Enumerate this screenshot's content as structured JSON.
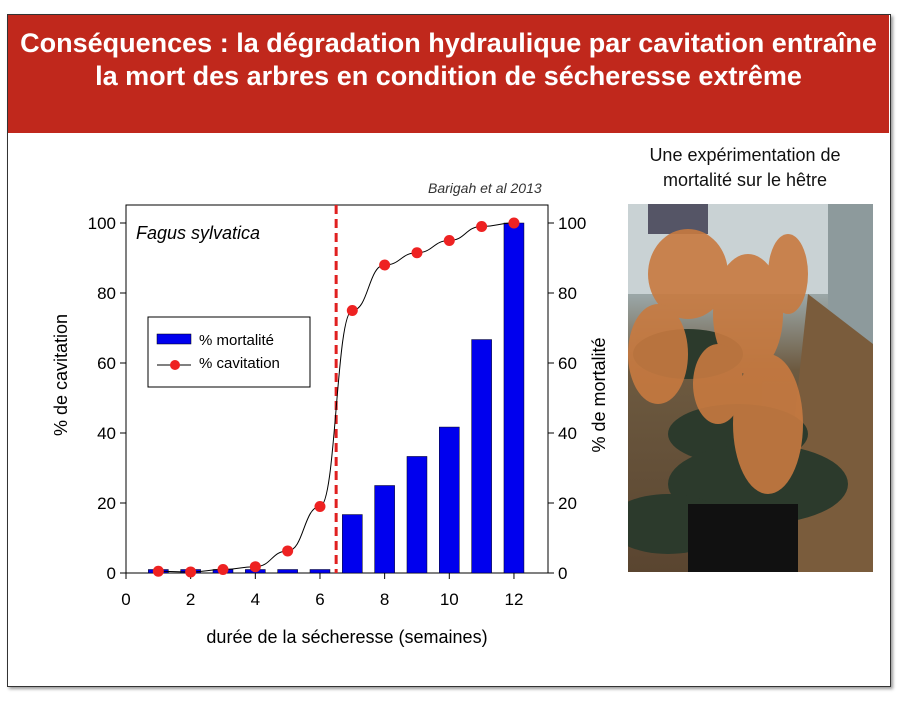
{
  "slide": {
    "title": "Conséquences : la dégradation hydraulique par cavitation entraîne la mort des arbres en condition de sécheresse extrême",
    "citation": "Barigah et al 2013",
    "photo_caption": "Une expérimentation de mortalité sur le hêtre"
  },
  "chart_data": {
    "type": "bar+line",
    "annotation": "Fagus sylvatica",
    "xlabel": "durée de la sécheresse (semaines)",
    "ylabel_left": "% de cavitation",
    "ylabel_right": "% de mortalité",
    "xlim": [
      0,
      13
    ],
    "ylim": [
      0,
      100
    ],
    "xticks": [
      0,
      2,
      4,
      6,
      8,
      10,
      12
    ],
    "yticks": [
      0,
      20,
      40,
      60,
      80,
      100
    ],
    "legend_position": "left-middle",
    "vertical_marker_x": 6.5,
    "x": [
      1,
      2,
      3,
      4,
      5,
      6,
      7,
      8,
      9,
      10,
      11,
      12
    ],
    "series": [
      {
        "name": "% mortalité",
        "type": "bar",
        "axis": "right",
        "color": "#0000ee",
        "values": [
          1,
          1,
          1,
          1,
          1,
          1,
          16.7,
          25,
          33.3,
          41.7,
          66.7,
          100
        ]
      },
      {
        "name": "% cavitation",
        "type": "line",
        "axis": "left",
        "color": "#ee0000",
        "values": [
          0.5,
          0.3,
          1,
          1.8,
          6.3,
          19,
          75,
          88,
          91.5,
          95,
          99,
          100
        ]
      }
    ],
    "marker_color": "#ee2222"
  }
}
